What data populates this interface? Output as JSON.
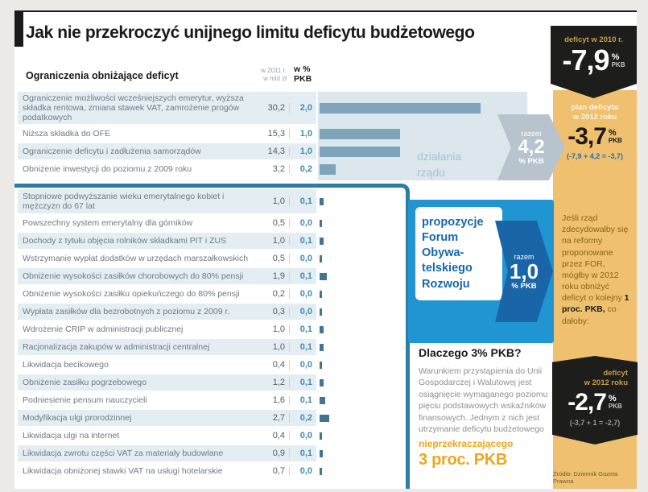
{
  "title": "Jak nie przekroczyć unijnego limitu deficytu budżetowego",
  "table": {
    "section_label": "Ograniczenia obniżające deficyt",
    "col_mld": [
      "w 2011 r.",
      "w mld zł"
    ],
    "col_pkb": [
      "w %",
      "PKB"
    ]
  },
  "chart_data": {
    "type": "bar",
    "title": "Jak nie przekroczyć unijnego limitu deficytu budżetowego",
    "value_units": [
      "mld zł (2011)",
      "% PKB"
    ],
    "groups": [
      {
        "name": "działania rządu",
        "total_label": "razem",
        "total_pkb": 4.2,
        "rows": [
          {
            "label": "Ograniczenie możliwości wcześniejszych emerytur, wyższa składka rentowa, zmiana stawek VAT, zamrożenie progów podatkowych",
            "mld": 30.2,
            "pkb": 2.0
          },
          {
            "label": "Niższa składka do OFE",
            "mld": 15.3,
            "pkb": 1.0
          },
          {
            "label": "Ograniczenie deficytu i zadłużenia samorządów",
            "mld": 14.3,
            "pkb": 1.0
          },
          {
            "label": "Obniżenie inwestycji do poziomu z 2009 roku",
            "mld": 3.2,
            "pkb": 0.2
          }
        ]
      },
      {
        "name": "propozycje Forum Obywatelskiego Rozwoju",
        "total_label": "razem",
        "total_pkb": 1.0,
        "rows": [
          {
            "label": "Stopniowe podwyższanie wieku emerytalnego kobiet i mężczyzn do 67 lat",
            "mld": 1.0,
            "pkb": 0.1
          },
          {
            "label": "Powszechny system emerytalny dla górników",
            "mld": 0.5,
            "pkb": 0.0
          },
          {
            "label": "Dochody z tytułu objęcia rolników składkami PIT i ZUS",
            "mld": 1.0,
            "pkb": 0.1
          },
          {
            "label": "Wstrzymanie wypłat dodatków w urzędach marszałkowskich",
            "mld": 0.5,
            "pkb": 0.0
          },
          {
            "label": "Obniżenie wysokości zasiłków chorobowych do 80% pensji",
            "mld": 1.9,
            "pkb": 0.1
          },
          {
            "label": "Obniżenie wysokości zasiłku opiekuńczego do 80% pensji",
            "mld": 0.2,
            "pkb": 0.0
          },
          {
            "label": "Wypłata zasiłków dla bezrobotnych z poziomu z 2009 r.",
            "mld": 0.3,
            "pkb": 0.0
          },
          {
            "label": "Wdrożenie CRIP w administracji publicznej",
            "mld": 1.0,
            "pkb": 0.1
          },
          {
            "label": "Racjonalizacja zakupów w administracji centralnej",
            "mld": 1.0,
            "pkb": 0.1
          },
          {
            "label": "Likwidacja becikowego",
            "mld": 0.4,
            "pkb": 0.0
          },
          {
            "label": "Obniżenie zasiłku pogrzebowego",
            "mld": 1.2,
            "pkb": 0.1
          },
          {
            "label": "Podniesienie pensum nauczycieli",
            "mld": 1.6,
            "pkb": 0.1
          },
          {
            "label": "Modyfikacja ulgi prorodzinnej",
            "mld": 2.7,
            "pkb": 0.2
          },
          {
            "label": "Likwidacja ulgi na internet",
            "mld": 0.4,
            "pkb": 0.0
          },
          {
            "label": "Likwidacja zwrotu części VAT za materiały budowlane",
            "mld": 0.9,
            "pkb": 0.1
          },
          {
            "label": "Likwidacja obniżonej stawki VAT na usługi hotelarskie",
            "mld": 0.7,
            "pkb": 0.0
          }
        ]
      }
    ],
    "deficits": [
      {
        "label": "deficyt w 2010 r.",
        "value_pct": -7.9
      },
      {
        "label": "plan deficytu w 2012 roku",
        "value_pct": -3.7,
        "formula": "(-7,9 + 4,2 = -3,7)"
      },
      {
        "label": "deficyt w 2012 roku",
        "value_pct": -2.7,
        "formula": "(-3,7 + 1 = -2,7)"
      }
    ]
  },
  "gov_caption": {
    "line1": "działania",
    "line2": "rządu"
  },
  "gov_arrow": {
    "razem": "razem",
    "value": "4,2",
    "unit": "% PKB"
  },
  "for_box": {
    "lines": [
      "propozycje",
      "Forum",
      "Obywa-",
      "telskiego",
      "Rozwoju"
    ]
  },
  "for_arrow": {
    "razem": "razem",
    "value": "1,0",
    "unit": "% PKB"
  },
  "sidebar": {
    "badge2010": {
      "label": "deficyt w 2010 r.",
      "value": "-7,9",
      "pct": "%",
      "pkb": "PKB"
    },
    "plan2012": {
      "label1": "plan deficytu",
      "label2": "w 2012 roku",
      "value": "-3,7",
      "pct": "%",
      "pkb": "PKB",
      "formula": "(-7,9 + 4,2 = -3,7)"
    },
    "note": {
      "part1": "Jeśli rząd zdecydowałby się na reformy proponowane przez FOR, mógłby w 2012 roku obniżyć deficyt o kolejny ",
      "strong": "1 proc. PKB,",
      "part2": " co dałoby:"
    },
    "badge2012": {
      "label1": "deficyt",
      "label2": "w 2012 roku",
      "value": "-2,7",
      "pct": "%",
      "pkb": "PKB",
      "formula": "(-3,7 + 1 = -2,7)"
    },
    "credit": "Źródło: Dziennik Gazeta Prawna"
  },
  "why": {
    "heading": "Dlaczego 3% PKB?",
    "body": "Warunkiem przystąpienia do Unii Gospodarczej i Walutowej jest osiągnięcie wymaganego poziomu pięciu podstawowych wskaźników finansowych. Jednym z nich jest utrzymanie deficytu budżetowego",
    "highlight": "nieprzekraczającego",
    "big": "3 proc. PKB"
  },
  "colors": {
    "accent_blue": "#2095d1",
    "dark_blue": "#1a65a8",
    "steel_bar": "#7da4bb",
    "orange": "#eec06f",
    "badge_black": "#1d1d1b",
    "value_blue": "#3f8cb0"
  }
}
